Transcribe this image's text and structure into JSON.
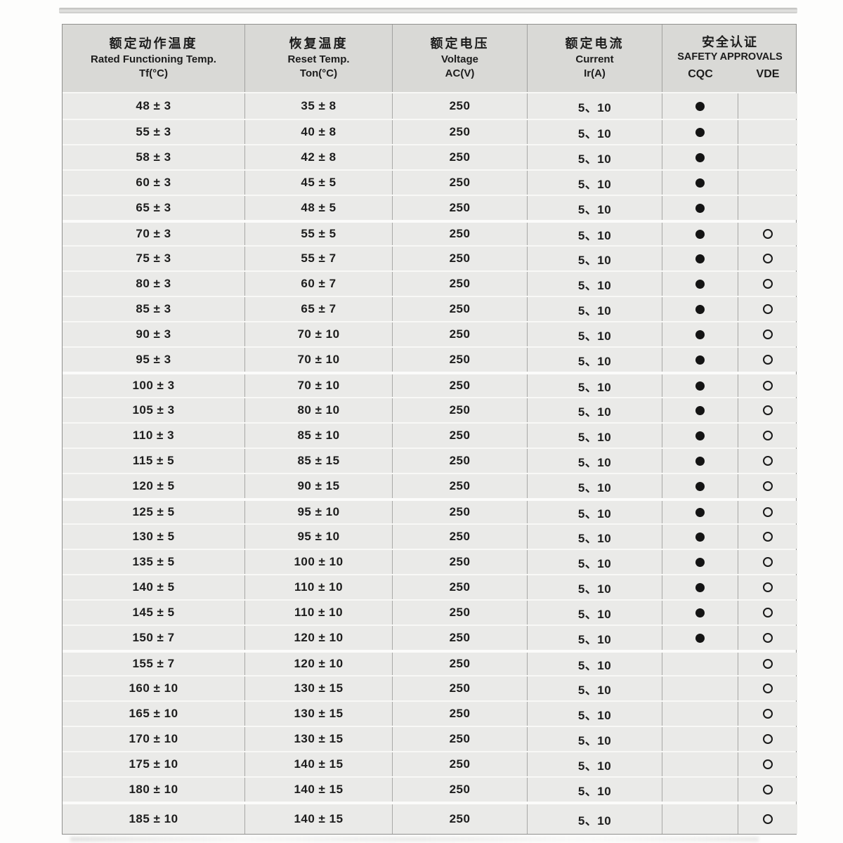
{
  "colors": {
    "header_bg": "#d9d9d6",
    "cell_bg": "#eaeae8",
    "grid_line": "#a8a8a6",
    "row_separator": "#f8f8f6",
    "outer_border": "#90908e",
    "text": "#1d1d1d",
    "approval_dot": "#141414"
  },
  "header": {
    "rated_temp": {
      "zh": "额定动作温度",
      "en": "Rated Functioning Temp.",
      "unit": "Tf(°C)"
    },
    "reset_temp": {
      "zh": "恢复温度",
      "en": "Reset Temp.",
      "unit": "Ton(°C)"
    },
    "voltage": {
      "zh": "额定电压",
      "en": "Voltage",
      "unit": "AC(V)"
    },
    "current": {
      "zh": "额定电流",
      "en": "Current",
      "unit": "Ir(A)"
    },
    "safety": {
      "zh": "安全认证",
      "en": "SAFETY APPROVALS",
      "sub1": "CQC",
      "sub2": "VDE"
    }
  },
  "icons": {
    "cqc_approved": "filled-circle",
    "vde_approved": "open-circle"
  },
  "rows": [
    {
      "tf": "48 ± 3",
      "ton": "35 ± 8",
      "voltage": "250",
      "current": "5、10",
      "cqc": true,
      "vde": false
    },
    {
      "tf": "55 ± 3",
      "ton": "40 ± 8",
      "voltage": "250",
      "current": "5、10",
      "cqc": true,
      "vde": false
    },
    {
      "tf": "58 ± 3",
      "ton": "42 ± 8",
      "voltage": "250",
      "current": "5、10",
      "cqc": true,
      "vde": false
    },
    {
      "tf": "60 ± 3",
      "ton": "45 ± 5",
      "voltage": "250",
      "current": "5、10",
      "cqc": true,
      "vde": false
    },
    {
      "tf": "65 ± 3",
      "ton": "48 ± 5",
      "voltage": "250",
      "current": "5、10",
      "cqc": true,
      "vde": false
    },
    {
      "tf": "70 ± 3",
      "ton": "55 ± 5",
      "voltage": "250",
      "current": "5、10",
      "cqc": true,
      "vde": true
    },
    {
      "tf": "75 ± 3",
      "ton": "55 ± 7",
      "voltage": "250",
      "current": "5、10",
      "cqc": true,
      "vde": true
    },
    {
      "tf": "80 ± 3",
      "ton": "60 ± 7",
      "voltage": "250",
      "current": "5、10",
      "cqc": true,
      "vde": true
    },
    {
      "tf": "85 ± 3",
      "ton": "65 ± 7",
      "voltage": "250",
      "current": "5、10",
      "cqc": true,
      "vde": true
    },
    {
      "tf": "90 ± 3",
      "ton": "70 ± 10",
      "voltage": "250",
      "current": "5、10",
      "cqc": true,
      "vde": true
    },
    {
      "tf": "95 ± 3",
      "ton": "70 ± 10",
      "voltage": "250",
      "current": "5、10",
      "cqc": true,
      "vde": true
    },
    {
      "tf": "100 ± 3",
      "ton": "70 ± 10",
      "voltage": "250",
      "current": "5、10",
      "cqc": true,
      "vde": true
    },
    {
      "tf": "105 ± 3",
      "ton": "80 ± 10",
      "voltage": "250",
      "current": "5、10",
      "cqc": true,
      "vde": true
    },
    {
      "tf": "110 ± 3",
      "ton": "85 ± 10",
      "voltage": "250",
      "current": "5、10",
      "cqc": true,
      "vde": true
    },
    {
      "tf": "115 ± 5",
      "ton": "85 ± 15",
      "voltage": "250",
      "current": "5、10",
      "cqc": true,
      "vde": true
    },
    {
      "tf": "120 ± 5",
      "ton": "90 ± 15",
      "voltage": "250",
      "current": "5、10",
      "cqc": true,
      "vde": true
    },
    {
      "tf": "125 ± 5",
      "ton": "95 ± 10",
      "voltage": "250",
      "current": "5、10",
      "cqc": true,
      "vde": true
    },
    {
      "tf": "130 ± 5",
      "ton": "95 ± 10",
      "voltage": "250",
      "current": "5、10",
      "cqc": true,
      "vde": true
    },
    {
      "tf": "135 ± 5",
      "ton": "100 ± 10",
      "voltage": "250",
      "current": "5、10",
      "cqc": true,
      "vde": true
    },
    {
      "tf": "140 ± 5",
      "ton": "110 ± 10",
      "voltage": "250",
      "current": "5、10",
      "cqc": true,
      "vde": true
    },
    {
      "tf": "145 ± 5",
      "ton": "110 ± 10",
      "voltage": "250",
      "current": "5、10",
      "cqc": true,
      "vde": true
    },
    {
      "tf": "150 ± 7",
      "ton": "120 ± 10",
      "voltage": "250",
      "current": "5、10",
      "cqc": true,
      "vde": true
    },
    {
      "tf": "155 ± 7",
      "ton": "120 ± 10",
      "voltage": "250",
      "current": "5、10",
      "cqc": false,
      "vde": true
    },
    {
      "tf": "160 ± 10",
      "ton": "130 ± 15",
      "voltage": "250",
      "current": "5、10",
      "cqc": false,
      "vde": true
    },
    {
      "tf": "165 ± 10",
      "ton": "130 ± 15",
      "voltage": "250",
      "current": "5、10",
      "cqc": false,
      "vde": true
    },
    {
      "tf": "170 ± 10",
      "ton": "130 ± 15",
      "voltage": "250",
      "current": "5、10",
      "cqc": false,
      "vde": true
    },
    {
      "tf": "175 ± 10",
      "ton": "140 ± 15",
      "voltage": "250",
      "current": "5、10",
      "cqc": false,
      "vde": true
    },
    {
      "tf": "180 ± 10",
      "ton": "140 ± 15",
      "voltage": "250",
      "current": "5、10",
      "cqc": false,
      "vde": true
    },
    {
      "tf": "185 ± 10",
      "ton": "140 ± 15",
      "voltage": "250",
      "current": "5、10",
      "cqc": false,
      "vde": true
    }
  ]
}
